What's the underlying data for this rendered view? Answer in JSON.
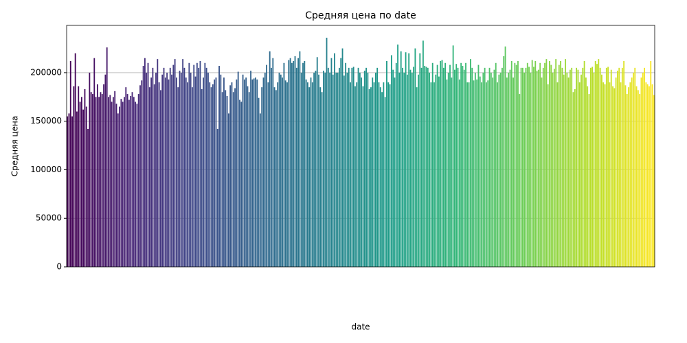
{
  "chart_data": {
    "type": "bar",
    "title": "Средняя цена по date",
    "x_label": "date",
    "y_label": "Средняя цена",
    "palette": "viridis",
    "ylim": [
      0,
      248700
    ],
    "yticks": [
      0,
      50000,
      100000,
      150000,
      200000
    ],
    "grid": true,
    "values": [
      155000,
      158000,
      212000,
      155000,
      186000,
      220000,
      160000,
      186000,
      170000,
      175000,
      162000,
      183000,
      165000,
      142000,
      200000,
      180000,
      178000,
      215000,
      175000,
      188000,
      175000,
      180000,
      178000,
      188000,
      198000,
      226000,
      175000,
      177000,
      170000,
      175000,
      181000,
      168000,
      158000,
      165000,
      173000,
      170000,
      175000,
      185000,
      178000,
      172000,
      176000,
      180000,
      175000,
      170000,
      168000,
      178000,
      187000,
      192000,
      207000,
      215000,
      200000,
      210000,
      185000,
      195000,
      205000,
      188000,
      200000,
      214000,
      190000,
      182000,
      198000,
      205000,
      195000,
      200000,
      193000,
      205000,
      198000,
      208000,
      214000,
      195000,
      185000,
      202000,
      200000,
      214000,
      205000,
      195000,
      190000,
      210000,
      200000,
      185000,
      208000,
      196000,
      210000,
      205000,
      212000,
      183000,
      195000,
      210000,
      205000,
      200000,
      190000,
      185000,
      188000,
      193000,
      195000,
      142000,
      207000,
      198000,
      180000,
      195000,
      182000,
      176000,
      158000,
      187000,
      190000,
      180000,
      184000,
      193000,
      201000,
      172000,
      170000,
      198000,
      193000,
      195000,
      186000,
      180000,
      202000,
      193000,
      194000,
      195000,
      193000,
      174000,
      158000,
      185000,
      195000,
      200000,
      208000,
      190000,
      222000,
      205000,
      215000,
      185000,
      182000,
      190000,
      200000,
      198000,
      195000,
      210000,
      192000,
      190000,
      213000,
      215000,
      210000,
      212000,
      217000,
      205000,
      215000,
      222000,
      200000,
      210000,
      212000,
      193000,
      190000,
      185000,
      195000,
      190000,
      200000,
      202000,
      216000,
      198000,
      185000,
      180000,
      202000,
      200000,
      236000,
      205000,
      200000,
      215000,
      198000,
      220000,
      200000,
      200000,
      205000,
      215000,
      225000,
      197000,
      210000,
      200000,
      205000,
      190000,
      205000,
      206000,
      186000,
      190000,
      205000,
      200000,
      195000,
      186000,
      202000,
      205000,
      200000,
      183000,
      185000,
      195000,
      190000,
      200000,
      205000,
      190000,
      185000,
      180000,
      190000,
      175000,
      212000,
      190000,
      188000,
      218000,
      203000,
      195000,
      210000,
      229000,
      200000,
      222000,
      205000,
      200000,
      221000,
      198000,
      220000,
      203000,
      200000,
      206000,
      225000,
      185000,
      198000,
      220000,
      205000,
      233000,
      207000,
      206000,
      205000,
      200000,
      190000,
      210000,
      190000,
      198000,
      208000,
      196000,
      212000,
      213000,
      205000,
      210000,
      193000,
      200000,
      208000,
      195000,
      228000,
      203000,
      209000,
      205000,
      193000,
      210000,
      207000,
      203000,
      210000,
      190000,
      190000,
      214000,
      205000,
      192000,
      200000,
      193000,
      208000,
      196000,
      190000,
      200000,
      205000,
      190000,
      192000,
      205000,
      200000,
      195000,
      203000,
      210000,
      190000,
      198000,
      200000,
      205000,
      217000,
      227000,
      195000,
      200000,
      203000,
      212000,
      195000,
      210000,
      208000,
      212000,
      178000,
      205000,
      205000,
      200000,
      205000,
      210000,
      206000,
      200000,
      213000,
      206000,
      212000,
      202000,
      203000,
      210000,
      195000,
      205000,
      210000,
      214000,
      188000,
      212000,
      208000,
      200000,
      204000,
      214000,
      190000,
      208000,
      212000,
      205000,
      198000,
      214000,
      200000,
      195000,
      203000,
      205000,
      180000,
      183000,
      205000,
      203000,
      190000,
      198000,
      205000,
      212000,
      195000,
      186000,
      178000,
      205000,
      206000,
      200000,
      212000,
      209000,
      214000,
      205000,
      198000,
      190000,
      188000,
      205000,
      206000,
      190000,
      203000,
      186000,
      184000,
      195000,
      202000,
      205000,
      190000,
      205000,
      212000,
      187000,
      178000,
      185000,
      190000,
      195000,
      200000,
      205000,
      186000,
      182000,
      178000,
      195000,
      200000,
      205000,
      190000,
      188000,
      186000,
      212000,
      188000,
      177000
    ]
  }
}
